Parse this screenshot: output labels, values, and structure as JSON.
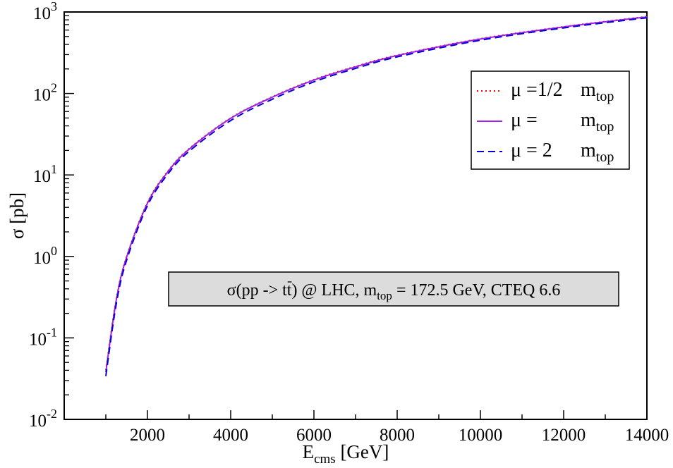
{
  "chart_data": {
    "type": "line",
    "ylog": true,
    "xlim": [
      0,
      14000
    ],
    "ylim": [
      0.01,
      1000
    ],
    "xticks": [
      2000,
      4000,
      6000,
      8000,
      10000,
      12000,
      14000
    ],
    "xtick_labels": [
      "2000",
      "4000",
      "6000",
      "8000",
      "10000",
      "12000",
      "14000"
    ],
    "yticks": [
      {
        "base": "10",
        "exp": "-2",
        "value": 0.01
      },
      {
        "base": "10",
        "exp": "-1",
        "value": 0.1
      },
      {
        "base": "10",
        "exp": "0",
        "value": 1
      },
      {
        "base": "10",
        "exp": "1",
        "value": 10
      },
      {
        "base": "10",
        "exp": "2",
        "value": 100
      },
      {
        "base": "10",
        "exp": "3",
        "value": 1000
      }
    ],
    "xlabel": {
      "main": "E",
      "sub": "cms",
      "unit": " [GeV]"
    },
    "ylabel": "σ [pb]",
    "legend_position": "top-right",
    "grid": false,
    "x": [
      1000,
      1250,
      1500,
      2000,
      2500,
      3000,
      4000,
      5000,
      6000,
      7000,
      8000,
      10000,
      12000,
      14000
    ],
    "series": [
      {
        "name": "μ =1/2 m_top",
        "legend": {
          "mu": "μ",
          "eq": "=1/2",
          "m": "m",
          "sub": "top"
        },
        "color": "#ff0000",
        "dash": "2,4",
        "values": [
          0.04,
          0.3,
          1.0,
          4.6,
          11.3,
          21.0,
          50.0,
          91.0,
          148.0,
          215.0,
          295.0,
          470.0,
          660.0,
          880.0
        ]
      },
      {
        "name": "μ = m_top",
        "legend": {
          "mu": "μ",
          "eq": "=",
          "m": "m",
          "sub": "top"
        },
        "color": "#a020f0",
        "dash": "",
        "values": [
          0.038,
          0.29,
          0.98,
          4.5,
          11.1,
          20.7,
          49.5,
          90.0,
          146.0,
          212.0,
          292.0,
          465.0,
          655.0,
          870.0
        ]
      },
      {
        "name": "μ = 2 m_top",
        "legend": {
          "mu": "μ",
          "eq": "= 2",
          "m": "m",
          "sub": "top"
        },
        "color": "#0000cc",
        "dash": "10,6",
        "values": [
          0.034,
          0.26,
          0.9,
          4.2,
          10.4,
          19.5,
          46.5,
          85.0,
          139.0,
          203.0,
          281.0,
          450.0,
          638.0,
          850.0
        ]
      }
    ],
    "annotation": {
      "pre": "σ(pp -> t",
      "tbar": "t",
      "mid": ") @ LHC, m",
      "sub": "top",
      "post": " = 172.5 GeV, CTEQ 6.6"
    }
  }
}
